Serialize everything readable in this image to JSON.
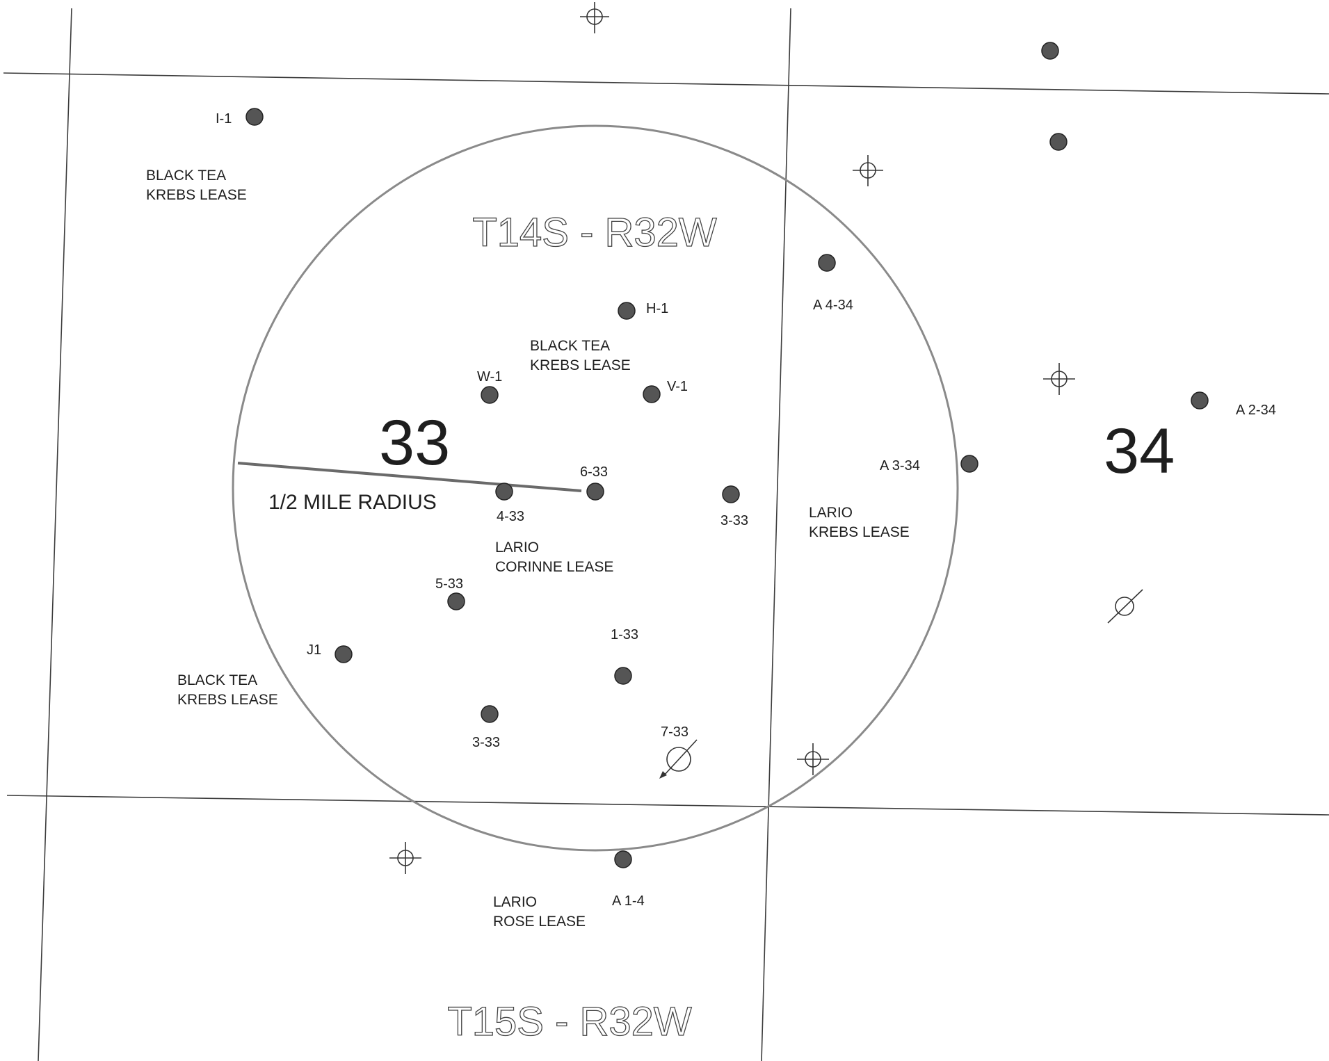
{
  "map": {
    "township_north": "T14S - R32W",
    "township_south": "T15S - R32W",
    "section_33": "33",
    "section_34": "34",
    "radius_label": "1/2 MILE RADIUS",
    "leases": [
      {
        "line1": "BLACK TEA",
        "line2": "KREBS LEASE"
      },
      {
        "line1": "BLACK TEA",
        "line2": "KREBS LEASE"
      },
      {
        "line1": "BLACK TEA",
        "line2": "KREBS LEASE"
      },
      {
        "line1": "LARIO",
        "line2": "CORINNE LEASE"
      },
      {
        "line1": "LARIO",
        "line2": "KREBS LEASE"
      },
      {
        "line1": "LARIO",
        "line2": "ROSE LEASE"
      }
    ],
    "wells": [
      {
        "label": "I-1"
      },
      {
        "label": "H-1"
      },
      {
        "label": "W-1"
      },
      {
        "label": "V-1"
      },
      {
        "label": "6-33"
      },
      {
        "label": "4-33"
      },
      {
        "label": "3-33"
      },
      {
        "label": "5-33"
      },
      {
        "label": "J1"
      },
      {
        "label": "1-33"
      },
      {
        "label": "3-33"
      },
      {
        "label": "A 4-34"
      },
      {
        "label": "A 3-34"
      },
      {
        "label": "A 2-34"
      },
      {
        "label": "A 1-4"
      },
      {
        "label": "7-33"
      }
    ]
  }
}
